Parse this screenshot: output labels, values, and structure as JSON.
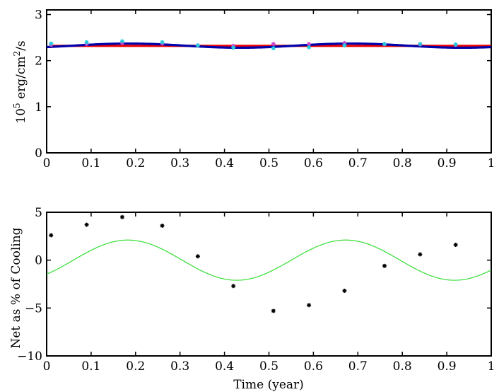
{
  "chart_data": [
    {
      "type": "line",
      "title": "",
      "xlabel": "",
      "ylabel": "10^5 erg/cm^2/s",
      "ylabel_parts": {
        "base": "10",
        "exp1": "5",
        "mid": " erg/cm",
        "exp2": "2",
        "tail": "/s"
      },
      "xlim": [
        0,
        1
      ],
      "ylim": [
        0,
        3.1
      ],
      "xticks": [
        0,
        0.1,
        0.2,
        0.3,
        0.4,
        0.5,
        0.6,
        0.7,
        0.8,
        0.9,
        1
      ],
      "xtick_labels": [
        "0",
        "0.1",
        "0.2",
        "0.3",
        "0.4",
        "0.5",
        "0.6",
        "0.7",
        "0.8",
        "0.9",
        "1"
      ],
      "yticks": [
        0,
        1,
        2,
        3
      ],
      "ytick_labels": [
        "0",
        "1",
        "2",
        "3"
      ],
      "grid": false,
      "series": [
        {
          "color": "#ee0000",
          "style": "line",
          "x": [
            0.01,
            1.0
          ],
          "y": [
            2.32,
            2.32
          ]
        },
        {
          "color": "#0000aa",
          "style": "line",
          "func": {
            "mean": 2.325,
            "amp": 0.045,
            "period": 0.5,
            "phase": 0.06
          }
        },
        {
          "color": "#cc44cc",
          "style": "markers",
          "x": [
            0.01,
            0.09,
            0.17,
            0.26,
            0.34,
            0.42,
            0.51,
            0.59,
            0.67,
            0.76,
            0.84,
            0.92
          ],
          "y": [
            2.34,
            2.36,
            2.38,
            2.37,
            2.33,
            2.32,
            2.36,
            2.36,
            2.38,
            2.36,
            2.35,
            2.34
          ]
        },
        {
          "color": "#22ccdd",
          "style": "markers",
          "x": [
            0.01,
            0.09,
            0.17,
            0.26,
            0.34,
            0.42,
            0.51,
            0.59,
            0.67,
            0.76,
            0.84,
            0.92
          ],
          "y": [
            2.37,
            2.4,
            2.42,
            2.4,
            2.33,
            2.28,
            2.27,
            2.29,
            2.33,
            2.36,
            2.36,
            2.35
          ]
        }
      ]
    },
    {
      "type": "scatter",
      "title": "",
      "xlabel": "Time (year)",
      "ylabel": "Net as % of Cooling",
      "xlim": [
        0,
        1
      ],
      "ylim": [
        -10,
        5
      ],
      "xticks": [
        0,
        0.1,
        0.2,
        0.3,
        0.4,
        0.5,
        0.6,
        0.7,
        0.8,
        0.9,
        1
      ],
      "xtick_labels": [
        "0",
        "0.1",
        "0.2",
        "0.3",
        "0.4",
        "0.5",
        "0.6",
        "0.7",
        "0.8",
        "0.9",
        "1"
      ],
      "yticks": [
        -10,
        -5,
        0,
        5
      ],
      "ytick_labels": [
        "−10",
        "−5",
        "0",
        "5"
      ],
      "grid": false,
      "series": [
        {
          "color": "#000000",
          "style": "markers",
          "marker": "*",
          "x": [
            0.01,
            0.09,
            0.17,
            0.26,
            0.34,
            0.42,
            0.51,
            0.59,
            0.67,
            0.76,
            0.84,
            0.92
          ],
          "y": [
            2.6,
            3.7,
            4.5,
            3.6,
            0.4,
            -2.7,
            -5.3,
            -4.7,
            -3.2,
            -0.6,
            0.6,
            1.6
          ]
        },
        {
          "color": "#33dd33",
          "style": "line",
          "func": {
            "mean": 0,
            "amp": 2.1,
            "period": 0.49,
            "phase": 0.06
          }
        }
      ]
    }
  ]
}
